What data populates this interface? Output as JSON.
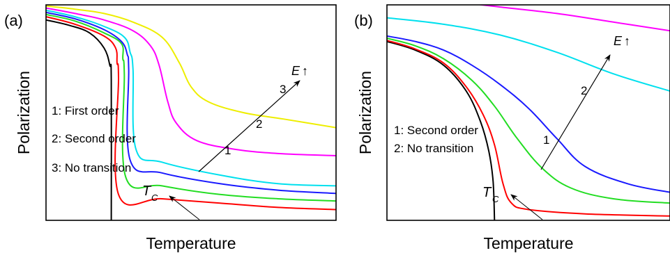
{
  "colors": {
    "black": "#000000",
    "red": "#ff0000",
    "green": "#22dd22",
    "blue": "#1a1aff",
    "cyan": "#00e0ee",
    "magenta": "#ff00ff",
    "yellow": "#eeee00"
  },
  "chart_data": [
    {
      "type": "line",
      "panel_label": "(a)",
      "xlabel": "Temperature",
      "ylabel": "Polarization",
      "xlim": [
        0,
        1
      ],
      "ylim": [
        0,
        1
      ],
      "grid": false,
      "tc_label": {
        "main": "T",
        "sub": "C"
      },
      "field_label": {
        "main": "E",
        "arrow": "↑"
      },
      "legend": [
        "1: First order",
        "2: Second order",
        "3: No transition"
      ],
      "markers": [
        "1",
        "2",
        "3"
      ],
      "series": [
        {
          "color": "black",
          "points": [
            [
              0,
              0.93
            ],
            [
              0.08,
              0.905
            ],
            [
              0.15,
              0.87
            ],
            [
              0.2,
              0.8
            ],
            [
              0.22,
              0.72
            ],
            [
              0.225,
              0.65
            ],
            [
              0.225,
              0.0
            ]
          ]
        },
        {
          "color": "red",
          "points": [
            [
              0,
              0.945
            ],
            [
              0.1,
              0.91
            ],
            [
              0.2,
              0.855
            ],
            [
              0.24,
              0.8
            ],
            [
              0.245,
              0.73
            ],
            [
              0.25,
              0.66
            ],
            [
              0.25,
              0.12
            ],
            [
              0.4,
              0.1
            ],
            [
              0.6,
              0.08
            ],
            [
              0.8,
              0.06
            ],
            [
              1,
              0.05
            ]
          ]
        },
        {
          "color": "green",
          "points": [
            [
              0,
              0.955
            ],
            [
              0.1,
              0.925
            ],
            [
              0.2,
              0.87
            ],
            [
              0.26,
              0.82
            ],
            [
              0.265,
              0.75
            ],
            [
              0.27,
              0.68
            ],
            [
              0.275,
              0.2
            ],
            [
              0.4,
              0.16
            ],
            [
              0.6,
              0.12
            ],
            [
              0.8,
              0.1
            ],
            [
              1,
              0.09
            ]
          ]
        },
        {
          "color": "blue",
          "points": [
            [
              0,
              0.965
            ],
            [
              0.1,
              0.935
            ],
            [
              0.2,
              0.885
            ],
            [
              0.26,
              0.83
            ],
            [
              0.28,
              0.77
            ],
            [
              0.285,
              0.7
            ],
            [
              0.29,
              0.28
            ],
            [
              0.4,
              0.22
            ],
            [
              0.6,
              0.17
            ],
            [
              0.8,
              0.14
            ],
            [
              1,
              0.125
            ]
          ]
        },
        {
          "color": "cyan",
          "points": [
            [
              0,
              0.975
            ],
            [
              0.1,
              0.945
            ],
            [
              0.2,
              0.9
            ],
            [
              0.27,
              0.85
            ],
            [
              0.29,
              0.78
            ],
            [
              0.3,
              0.7
            ],
            [
              0.31,
              0.33
            ],
            [
              0.4,
              0.27
            ],
            [
              0.6,
              0.21
            ],
            [
              0.8,
              0.17
            ],
            [
              1,
              0.16
            ]
          ]
        },
        {
          "color": "magenta",
          "points": [
            [
              0,
              0.985
            ],
            [
              0.1,
              0.96
            ],
            [
              0.2,
              0.93
            ],
            [
              0.3,
              0.88
            ],
            [
              0.36,
              0.81
            ],
            [
              0.39,
              0.72
            ],
            [
              0.42,
              0.55
            ],
            [
              0.45,
              0.45
            ],
            [
              0.52,
              0.37
            ],
            [
              0.65,
              0.33
            ],
            [
              0.8,
              0.31
            ],
            [
              1,
              0.3
            ]
          ]
        },
        {
          "color": "yellow",
          "points": [
            [
              0,
              0.995
            ],
            [
              0.1,
              0.98
            ],
            [
              0.2,
              0.96
            ],
            [
              0.3,
              0.92
            ],
            [
              0.4,
              0.85
            ],
            [
              0.46,
              0.73
            ],
            [
              0.5,
              0.62
            ],
            [
              0.56,
              0.55
            ],
            [
              0.68,
              0.5
            ],
            [
              0.82,
              0.47
            ],
            [
              1,
              0.43
            ]
          ]
        }
      ]
    },
    {
      "type": "line",
      "panel_label": "(b)",
      "xlabel": "Temperature",
      "ylabel": "Polarization",
      "xlim": [
        0,
        1
      ],
      "ylim": [
        0,
        1
      ],
      "grid": false,
      "tc_label": {
        "main": "T",
        "sub": "C"
      },
      "field_label": {
        "main": "E",
        "arrow": "↑"
      },
      "legend": [
        "1: Second order",
        "2: No transition"
      ],
      "markers": [
        "1",
        "2"
      ],
      "series": [
        {
          "color": "black",
          "points": [
            [
              0,
              0.83
            ],
            [
              0.1,
              0.79
            ],
            [
              0.2,
              0.72
            ],
            [
              0.28,
              0.6
            ],
            [
              0.33,
              0.46
            ],
            [
              0.36,
              0.32
            ],
            [
              0.375,
              0.18
            ],
            [
              0.38,
              0.0
            ]
          ]
        },
        {
          "color": "red",
          "points": [
            [
              0,
              0.835
            ],
            [
              0.1,
              0.795
            ],
            [
              0.2,
              0.73
            ],
            [
              0.28,
              0.62
            ],
            [
              0.34,
              0.49
            ],
            [
              0.38,
              0.35
            ],
            [
              0.41,
              0.17
            ],
            [
              0.44,
              0.08
            ],
            [
              0.5,
              0.05
            ],
            [
              0.7,
              0.03
            ],
            [
              1,
              0.02
            ]
          ]
        },
        {
          "color": "green",
          "points": [
            [
              0,
              0.845
            ],
            [
              0.1,
              0.81
            ],
            [
              0.2,
              0.75
            ],
            [
              0.3,
              0.65
            ],
            [
              0.38,
              0.53
            ],
            [
              0.46,
              0.38
            ],
            [
              0.55,
              0.24
            ],
            [
              0.65,
              0.15
            ],
            [
              0.8,
              0.1
            ],
            [
              1,
              0.08
            ]
          ]
        },
        {
          "color": "blue",
          "points": [
            [
              0,
              0.855
            ],
            [
              0.1,
              0.83
            ],
            [
              0.2,
              0.79
            ],
            [
              0.3,
              0.72
            ],
            [
              0.4,
              0.63
            ],
            [
              0.5,
              0.52
            ],
            [
              0.6,
              0.38
            ],
            [
              0.7,
              0.25
            ],
            [
              0.85,
              0.17
            ],
            [
              1,
              0.13
            ]
          ]
        },
        {
          "color": "cyan",
          "points": [
            [
              0,
              0.94
            ],
            [
              0.2,
              0.91
            ],
            [
              0.4,
              0.86
            ],
            [
              0.6,
              0.78
            ],
            [
              0.8,
              0.68
            ],
            [
              1,
              0.6
            ]
          ]
        },
        {
          "color": "magenta",
          "points": [
            [
              0,
              1.04
            ],
            [
              0.2,
              1.02
            ],
            [
              0.4,
              0.99
            ],
            [
              0.6,
              0.96
            ],
            [
              0.8,
              0.92
            ],
            [
              1,
              0.88
            ]
          ]
        }
      ]
    }
  ]
}
